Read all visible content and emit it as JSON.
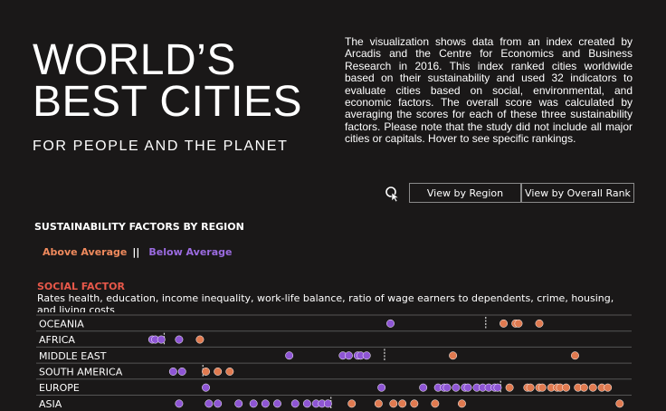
{
  "header": {
    "title_line1": "WORLD’S",
    "title_line2": "BEST CITIES",
    "subtitle": "FOR PEOPLE AND THE PLANET",
    "description": "The visualization shows data from an index created by Arcadis and the Centre for Economics and Business Research in 2016. This index ranked cities worldwide based on their sustainability and used 32 indicators to evaluate cities based on social, environmental, and economic factors. The overall score was calculated by averaging the scores for each of these three sustainability factors. Please note that the study did not include all major cities or capitals. Hover to see specific rankings."
  },
  "controls": {
    "view_by_region": "View by Region",
    "view_by_rank": "View by Overall Rank",
    "cursor_icon": "pointer-click-icon"
  },
  "section": {
    "title": "SUSTAINABILITY FACTORS BY REGION",
    "legend_above": "Above Average",
    "legend_sep": "||",
    "legend_below": "Below Average"
  },
  "factor": {
    "title": "SOCIAL FACTOR",
    "description": "Rates health, education, income inequality, work-life balance, ratio of wage earners to dependents, crime, housing, and living costs"
  },
  "colors": {
    "above": "#e07a50",
    "below": "#8e55d4",
    "background": "#1a1818",
    "factor_title": "#e8584a"
  },
  "chart_data": {
    "type": "scatter",
    "title": "SOCIAL FACTOR",
    "xlabel": "",
    "ylabel": "",
    "xlim": [
      0,
      100
    ],
    "grid": false,
    "rows": [
      {
        "region": "OCEANIA",
        "average": 75.5,
        "points": [
          {
            "x": 59.5,
            "group": "below"
          },
          {
            "x": 78.5,
            "group": "above"
          },
          {
            "x": 80.5,
            "group": "above"
          },
          {
            "x": 81.0,
            "group": "above"
          },
          {
            "x": 84.5,
            "group": "above"
          }
        ]
      },
      {
        "region": "AFRICA",
        "average": 21.5,
        "points": [
          {
            "x": 19.5,
            "group": "below"
          },
          {
            "x": 20.0,
            "group": "below"
          },
          {
            "x": 21.0,
            "group": "below"
          },
          {
            "x": 24.0,
            "group": "below"
          },
          {
            "x": 27.5,
            "group": "above"
          }
        ]
      },
      {
        "region": "MIDDLE EAST",
        "average": 58.5,
        "points": [
          {
            "x": 42.5,
            "group": "below"
          },
          {
            "x": 51.5,
            "group": "below"
          },
          {
            "x": 52.5,
            "group": "below"
          },
          {
            "x": 54.0,
            "group": "below"
          },
          {
            "x": 54.5,
            "group": "below"
          },
          {
            "x": 55.5,
            "group": "below"
          },
          {
            "x": 70.0,
            "group": "above"
          },
          {
            "x": 90.5,
            "group": "above"
          }
        ]
      },
      {
        "region": "SOUTH AMERICA",
        "average": 28.0,
        "points": [
          {
            "x": 23.0,
            "group": "below"
          },
          {
            "x": 24.5,
            "group": "below"
          },
          {
            "x": 28.5,
            "group": "above"
          },
          {
            "x": 30.5,
            "group": "above"
          },
          {
            "x": 32.5,
            "group": "above"
          }
        ]
      },
      {
        "region": "EUROPE",
        "average": 78.0,
        "points": [
          {
            "x": 28.5,
            "group": "below"
          },
          {
            "x": 58.0,
            "group": "below"
          },
          {
            "x": 65.0,
            "group": "below"
          },
          {
            "x": 67.5,
            "group": "below"
          },
          {
            "x": 68.5,
            "group": "below"
          },
          {
            "x": 69.0,
            "group": "below"
          },
          {
            "x": 70.5,
            "group": "below"
          },
          {
            "x": 72.0,
            "group": "below"
          },
          {
            "x": 72.5,
            "group": "below"
          },
          {
            "x": 74.0,
            "group": "below"
          },
          {
            "x": 75.0,
            "group": "below"
          },
          {
            "x": 76.0,
            "group": "below"
          },
          {
            "x": 77.0,
            "group": "below"
          },
          {
            "x": 77.5,
            "group": "below"
          },
          {
            "x": 79.5,
            "group": "above"
          },
          {
            "x": 82.5,
            "group": "above"
          },
          {
            "x": 83.0,
            "group": "above"
          },
          {
            "x": 84.5,
            "group": "above"
          },
          {
            "x": 85.0,
            "group": "above"
          },
          {
            "x": 86.5,
            "group": "above"
          },
          {
            "x": 87.5,
            "group": "above"
          },
          {
            "x": 88.0,
            "group": "above"
          },
          {
            "x": 89.0,
            "group": "above"
          },
          {
            "x": 91.0,
            "group": "above"
          },
          {
            "x": 92.0,
            "group": "above"
          },
          {
            "x": 93.5,
            "group": "above"
          },
          {
            "x": 95.0,
            "group": "above"
          },
          {
            "x": 96.0,
            "group": "above"
          }
        ]
      },
      {
        "region": "ASIA",
        "average": 49.5,
        "points": [
          {
            "x": 24.0,
            "group": "below"
          },
          {
            "x": 29.0,
            "group": "below"
          },
          {
            "x": 30.5,
            "group": "below"
          },
          {
            "x": 34.0,
            "group": "below"
          },
          {
            "x": 36.5,
            "group": "below"
          },
          {
            "x": 38.5,
            "group": "below"
          },
          {
            "x": 40.5,
            "group": "below"
          },
          {
            "x": 43.5,
            "group": "below"
          },
          {
            "x": 45.5,
            "group": "below"
          },
          {
            "x": 47.0,
            "group": "below"
          },
          {
            "x": 48.0,
            "group": "below"
          },
          {
            "x": 49.0,
            "group": "below"
          },
          {
            "x": 53.0,
            "group": "above"
          },
          {
            "x": 57.5,
            "group": "above"
          },
          {
            "x": 60.0,
            "group": "above"
          },
          {
            "x": 61.5,
            "group": "above"
          },
          {
            "x": 63.5,
            "group": "above"
          },
          {
            "x": 67.0,
            "group": "above"
          },
          {
            "x": 71.5,
            "group": "above"
          },
          {
            "x": 98.0,
            "group": "above"
          }
        ]
      }
    ]
  }
}
